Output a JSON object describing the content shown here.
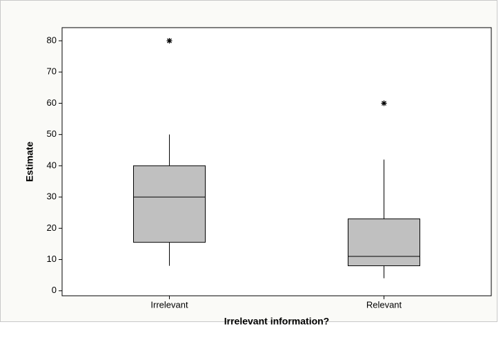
{
  "chart_data": {
    "type": "box",
    "x_label": "Irrelevant information?",
    "y_label": "Estimate",
    "categories": [
      "Irrelevant",
      "Relevant"
    ],
    "boxes": [
      {
        "whislo": 8,
        "q1": 15.5,
        "med": 30,
        "q3": 40,
        "whishi": 50,
        "fliers": [
          80
        ]
      },
      {
        "whislo": 4,
        "q1": 8,
        "med": 11,
        "q3": 23,
        "whishi": 42,
        "fliers": [
          60
        ]
      }
    ],
    "color": "#c0c0c0",
    "ylim": [
      -1.6,
      84.2
    ],
    "yticks": [
      0,
      10,
      20,
      30,
      40,
      50,
      60,
      70,
      80
    ]
  }
}
